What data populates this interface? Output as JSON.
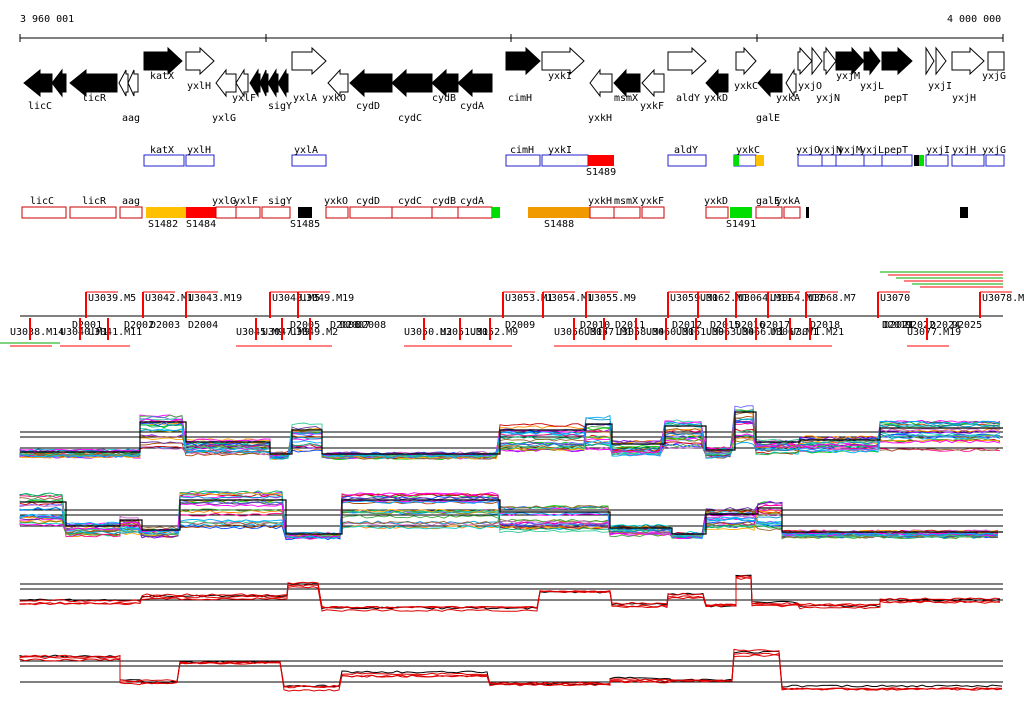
{
  "ruler": {
    "start_label": "3 960 001",
    "end_label": "4 000 000"
  },
  "genes": [
    {
      "name": "licC",
      "dir": "L",
      "fill": true
    },
    {
      "name": "licR",
      "dir": "L",
      "fill": true
    },
    {
      "name": "aag",
      "dir": "L",
      "fill": false
    },
    {
      "name": "katX",
      "dir": "R",
      "fill": true
    },
    {
      "name": "yxlH",
      "dir": "R",
      "fill": false
    },
    {
      "name": "yxlG",
      "dir": "L",
      "fill": false
    },
    {
      "name": "yxlF",
      "dir": "L",
      "fill": true
    },
    {
      "name": "sigY",
      "dir": "L",
      "fill": true
    },
    {
      "name": "yxlA",
      "dir": "R",
      "fill": false
    },
    {
      "name": "yxkO",
      "dir": "L",
      "fill": false
    },
    {
      "name": "cydD",
      "dir": "L",
      "fill": true
    },
    {
      "name": "cydC",
      "dir": "L",
      "fill": true
    },
    {
      "name": "cydB",
      "dir": "L",
      "fill": true
    },
    {
      "name": "cydA",
      "dir": "L",
      "fill": true
    },
    {
      "name": "cimH",
      "dir": "R",
      "fill": true
    },
    {
      "name": "yxkI",
      "dir": "R",
      "fill": false
    },
    {
      "name": "yxkH",
      "dir": "L",
      "fill": false
    },
    {
      "name": "msmX",
      "dir": "L",
      "fill": true
    },
    {
      "name": "yxkF",
      "dir": "L",
      "fill": false
    },
    {
      "name": "aldY",
      "dir": "R",
      "fill": false
    },
    {
      "name": "yxkD",
      "dir": "L",
      "fill": true
    },
    {
      "name": "yxkC",
      "dir": "R",
      "fill": false
    },
    {
      "name": "galE",
      "dir": "L",
      "fill": true
    },
    {
      "name": "yxkA",
      "dir": "L",
      "fill": false
    },
    {
      "name": "yxjO",
      "dir": "R",
      "fill": false
    },
    {
      "name": "yxjN",
      "dir": "R",
      "fill": false
    },
    {
      "name": "yxjM",
      "dir": "R",
      "fill": true
    },
    {
      "name": "yxjL",
      "dir": "R",
      "fill": true
    },
    {
      "name": "pepT",
      "dir": "R",
      "fill": true
    },
    {
      "name": "yxjI",
      "dir": "R",
      "fill": false
    },
    {
      "name": "yxjH",
      "dir": "R",
      "fill": false
    },
    {
      "name": "yxjG",
      "dir": "R",
      "fill": false
    }
  ],
  "plus_boxes": [
    "katX",
    "yxlH",
    "yxlA",
    "cimH",
    "yxkI",
    "aldY",
    "yxkC",
    "yxjO",
    "yxjN",
    "yxjM",
    "yxjL",
    "pepT",
    "yxjI",
    "yxjH",
    "yxjG"
  ],
  "minus_boxes": [
    "licC",
    "licR",
    "aag",
    "yxlG",
    "yxlF",
    "sigY",
    "yxkO",
    "cydD",
    "cydC",
    "cydB",
    "cydA",
    "yxkH",
    "msmX",
    "yxkF",
    "yxkD",
    "galE",
    "yxkA"
  ],
  "s_labels": [
    "S1482",
    "S1484",
    "S1485",
    "S1488",
    "S1489",
    "S1491"
  ],
  "upper_tu": [
    "U3039.M5",
    "U3042.M1",
    "U3043.M19",
    "U3048.M5",
    "U3049.M19",
    "U3053.M1",
    "U3054.M1",
    "U3055.M9",
    "U3059.M1",
    "U3062.M1",
    "U3064.M11",
    "U3064.M17",
    "U3068.M7",
    "U3070",
    "U3078.M"
  ],
  "upper_d": [
    "D2001",
    "D2002",
    "D2003",
    "D2004",
    "D2005",
    "D2006",
    "D2007",
    "D2008",
    "D2009",
    "D2010",
    "D2011",
    "D2012",
    "D2015",
    "D2016",
    "D2017",
    "D2018",
    "D2019",
    "D2021",
    "D2022",
    "D2024",
    "D2025"
  ],
  "lower_tu": [
    "U3038.M14",
    "U3040.M1",
    "U3041.M11",
    "U3045.M9",
    "U3047.M9",
    "U3049.M2",
    "U3050.M2",
    "U3051.M1",
    "U3052.M9",
    "U3056.M17",
    "U3057.M1",
    "U3058.M4",
    "U3060.M1",
    "U3061.M9",
    "U3063.M4",
    "U3066.M1",
    "U3067.M1",
    "U3071.M21",
    "U3077.M19"
  ],
  "colors": {
    "plus_box": "#2222cc",
    "minus_box": "#cc0000",
    "orange": "#f09a00",
    "yellow": "#ffc000",
    "red": "#ff0000",
    "green": "#00dd00",
    "black": "#000000",
    "minus_trace": "#dd0000"
  }
}
